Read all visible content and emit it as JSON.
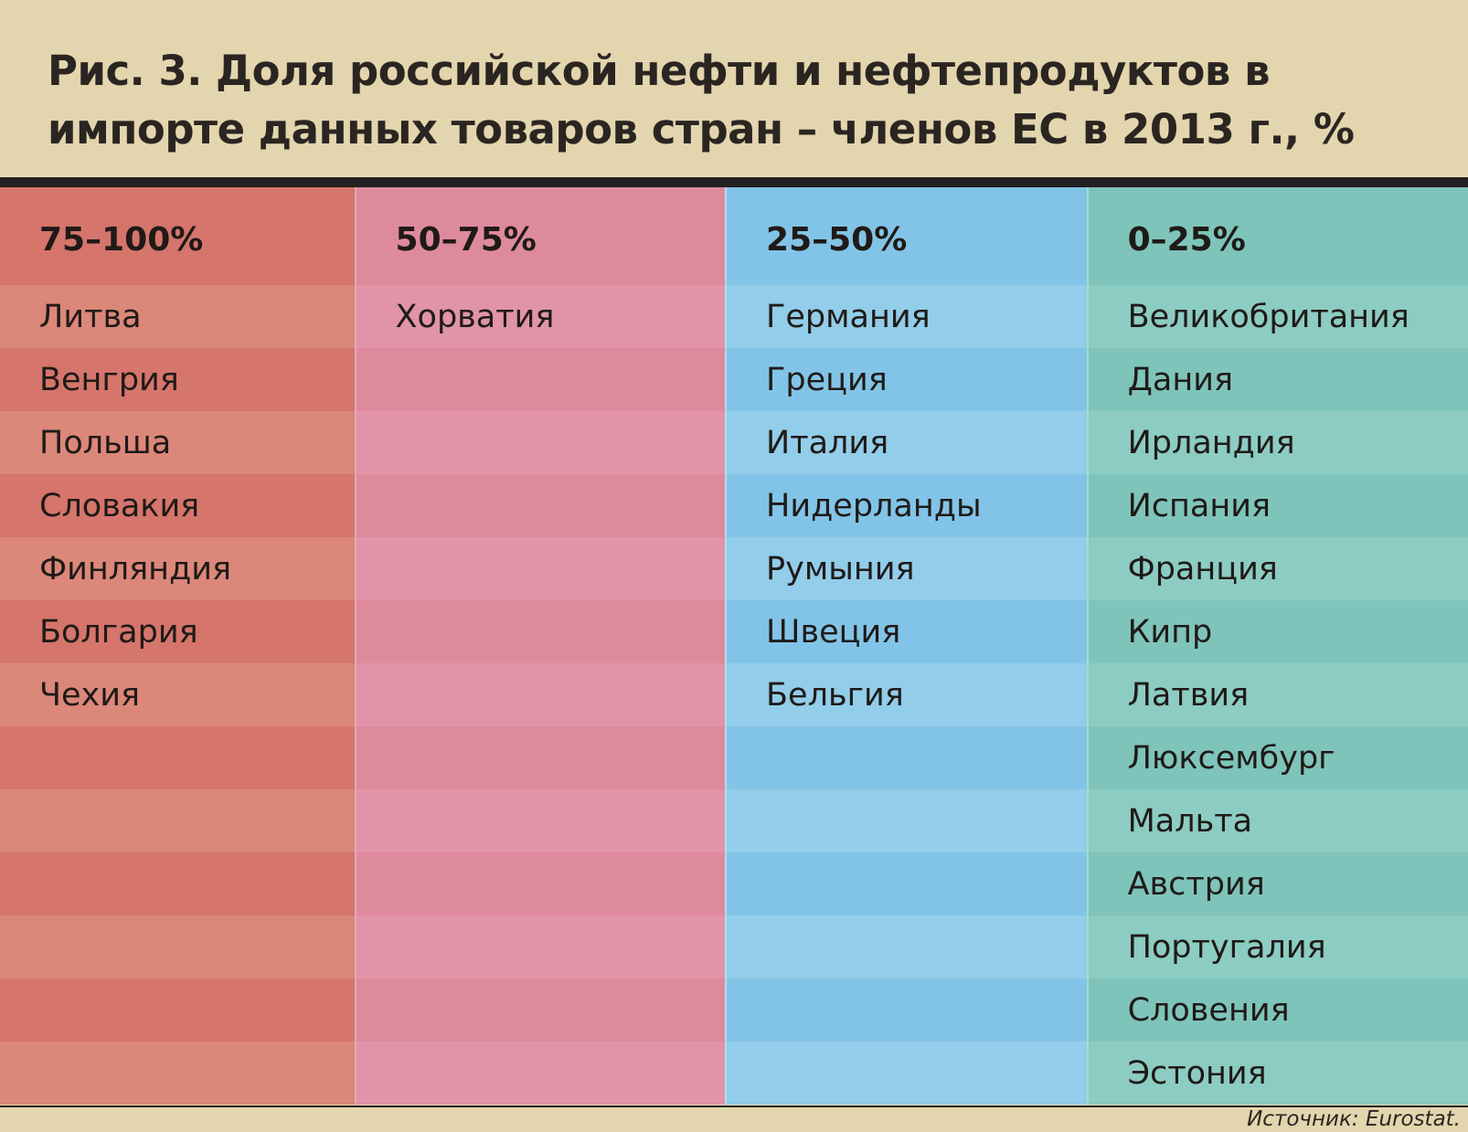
{
  "title": "Рис. 3. Доля российской нефти и нефтепродуктов  в импорте данных товаров стран – членов ЕС в 2013 г., %",
  "source": "Источник: Eurostat.",
  "colors": {
    "background": "#e3d5ad",
    "band_75_100": "#d5756b",
    "band_50_75": "#de8a9d",
    "band_25_50": "#82c4e7",
    "band_0_25": "#7ec4ba"
  },
  "chart_data": {
    "type": "table",
    "title": "Рис. 3. Доля российской нефти и нефтепродуктов  в импорте данных товаров стран – членов ЕС в 2013 г., %",
    "columns": [
      {
        "header": "75–100%",
        "countries": [
          "Литва",
          "Венгрия",
          "Польша",
          "Словакия",
          "Финляндия",
          "Болгария",
          "Чехия"
        ]
      },
      {
        "header": "50–75%",
        "countries": [
          "Хорватия"
        ]
      },
      {
        "header": "25–50%",
        "countries": [
          "Германия",
          "Греция",
          "Италия",
          "Нидерланды",
          "Румыния",
          "Швеция",
          "Бельгия"
        ]
      },
      {
        "header": "0–25%",
        "countries": [
          "Великобритания",
          "Дания",
          "Ирландия",
          "Испания",
          "Франция",
          "Кипр",
          "Латвия",
          "Люксембург",
          "Мальта",
          "Австрия",
          "Португалия",
          "Словения",
          "Эстония"
        ]
      }
    ]
  }
}
